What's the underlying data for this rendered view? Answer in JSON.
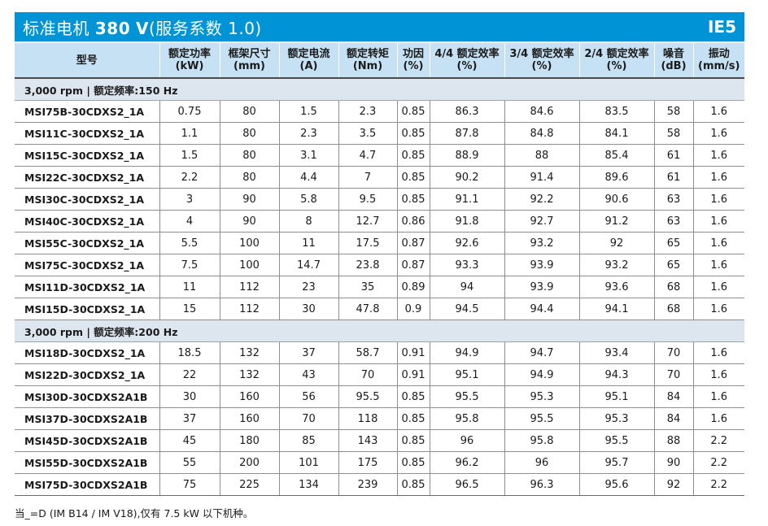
{
  "title": {
    "main": "标准电机",
    "voltage": "380",
    "unit": "V",
    "suffix": "(服务系数 1.0)",
    "badge": "IE5"
  },
  "headers": [
    {
      "l1": "型号",
      "l2": ""
    },
    {
      "l1": "额定功率",
      "l2": "(kW)"
    },
    {
      "l1": "框架尺寸",
      "l2": "(mm)"
    },
    {
      "l1": "额定电流",
      "l2": "(A)"
    },
    {
      "l1": "额定转矩",
      "l2": "(Nm)"
    },
    {
      "l1": "功因",
      "l2": "(%)"
    },
    {
      "l1": "4/4 额定效率",
      "l2": "(%)"
    },
    {
      "l1": "3/4 额定效率",
      "l2": "(%)"
    },
    {
      "l1": "2/4 额定效率",
      "l2": "(%)"
    },
    {
      "l1": "噪音",
      "l2": "(dB)"
    },
    {
      "l1": "振动",
      "l2": "(mm/s)"
    }
  ],
  "sections": [
    {
      "label": "3,000 rpm | 额定频率:150 Hz",
      "rows": [
        [
          "MSI75B-30CDXS2_1A",
          "0.75",
          "80",
          "1.5",
          "2.3",
          "0.85",
          "86.3",
          "84.6",
          "83.5",
          "58",
          "1.6"
        ],
        [
          "MSI11C-30CDXS2_1A",
          "1.1",
          "80",
          "2.3",
          "3.5",
          "0.85",
          "87.8",
          "84.8",
          "84.1",
          "58",
          "1.6"
        ],
        [
          "MSI15C-30CDXS2_1A",
          "1.5",
          "80",
          "3.1",
          "4.7",
          "0.85",
          "88.9",
          "88",
          "85.4",
          "61",
          "1.6"
        ],
        [
          "MSI22C-30CDXS2_1A",
          "2.2",
          "80",
          "4.4",
          "7",
          "0.85",
          "90.2",
          "91.4",
          "89.6",
          "61",
          "1.6"
        ],
        [
          "MSI30C-30CDXS2_1A",
          "3",
          "90",
          "5.8",
          "9.5",
          "0.85",
          "91.1",
          "92.2",
          "90.6",
          "63",
          "1.6"
        ],
        [
          "MSI40C-30CDXS2_1A",
          "4",
          "90",
          "8",
          "12.7",
          "0.86",
          "91.8",
          "92.7",
          "91.2",
          "63",
          "1.6"
        ],
        [
          "MSI55C-30CDXS2_1A",
          "5.5",
          "100",
          "11",
          "17.5",
          "0.87",
          "92.6",
          "93.2",
          "92",
          "65",
          "1.6"
        ],
        [
          "MSI75C-30CDXS2_1A",
          "7.5",
          "100",
          "14.7",
          "23.8",
          "0.87",
          "93.3",
          "93.9",
          "93.2",
          "65",
          "1.6"
        ],
        [
          "MSI11D-30CDXS2_1A",
          "11",
          "112",
          "23",
          "35",
          "0.89",
          "94",
          "93.9",
          "93.6",
          "68",
          "1.6"
        ],
        [
          "MSI15D-30CDXS2_1A",
          "15",
          "112",
          "30",
          "47.8",
          "0.9",
          "94.5",
          "94.4",
          "94.1",
          "68",
          "1.6"
        ]
      ]
    },
    {
      "label": "3,000 rpm | 额定频率:200 Hz",
      "rows": [
        [
          "MSI18D-30CDXS2_1A",
          "18.5",
          "132",
          "37",
          "58.7",
          "0.91",
          "94.9",
          "94.7",
          "93.4",
          "70",
          "1.6"
        ],
        [
          "MSI22D-30CDXS2_1A",
          "22",
          "132",
          "43",
          "70",
          "0.91",
          "95.1",
          "94.9",
          "94.3",
          "70",
          "1.6"
        ],
        [
          "MSI30D-30CDXS2A1B",
          "30",
          "160",
          "56",
          "95.5",
          "0.85",
          "95.5",
          "95.3",
          "95.1",
          "84",
          "1.6"
        ],
        [
          "MSI37D-30CDXS2A1B",
          "37",
          "160",
          "70",
          "118",
          "0.85",
          "95.8",
          "95.5",
          "95.3",
          "84",
          "1.6"
        ],
        [
          "MSI45D-30CDXS2A1B",
          "45",
          "180",
          "85",
          "143",
          "0.85",
          "96",
          "95.8",
          "95.5",
          "88",
          "2.2"
        ],
        [
          "MSI55D-30CDXS2A1B",
          "55",
          "200",
          "101",
          "175",
          "0.85",
          "96.2",
          "96",
          "95.7",
          "90",
          "2.2"
        ],
        [
          "MSI75D-30CDXS2A1B",
          "75",
          "225",
          "134",
          "239",
          "0.85",
          "96.5",
          "96.3",
          "95.6",
          "92",
          "2.2"
        ]
      ]
    }
  ],
  "note": "当_=D (IM B14 / IM V18),仅有 7.5 kW 以下机种。"
}
